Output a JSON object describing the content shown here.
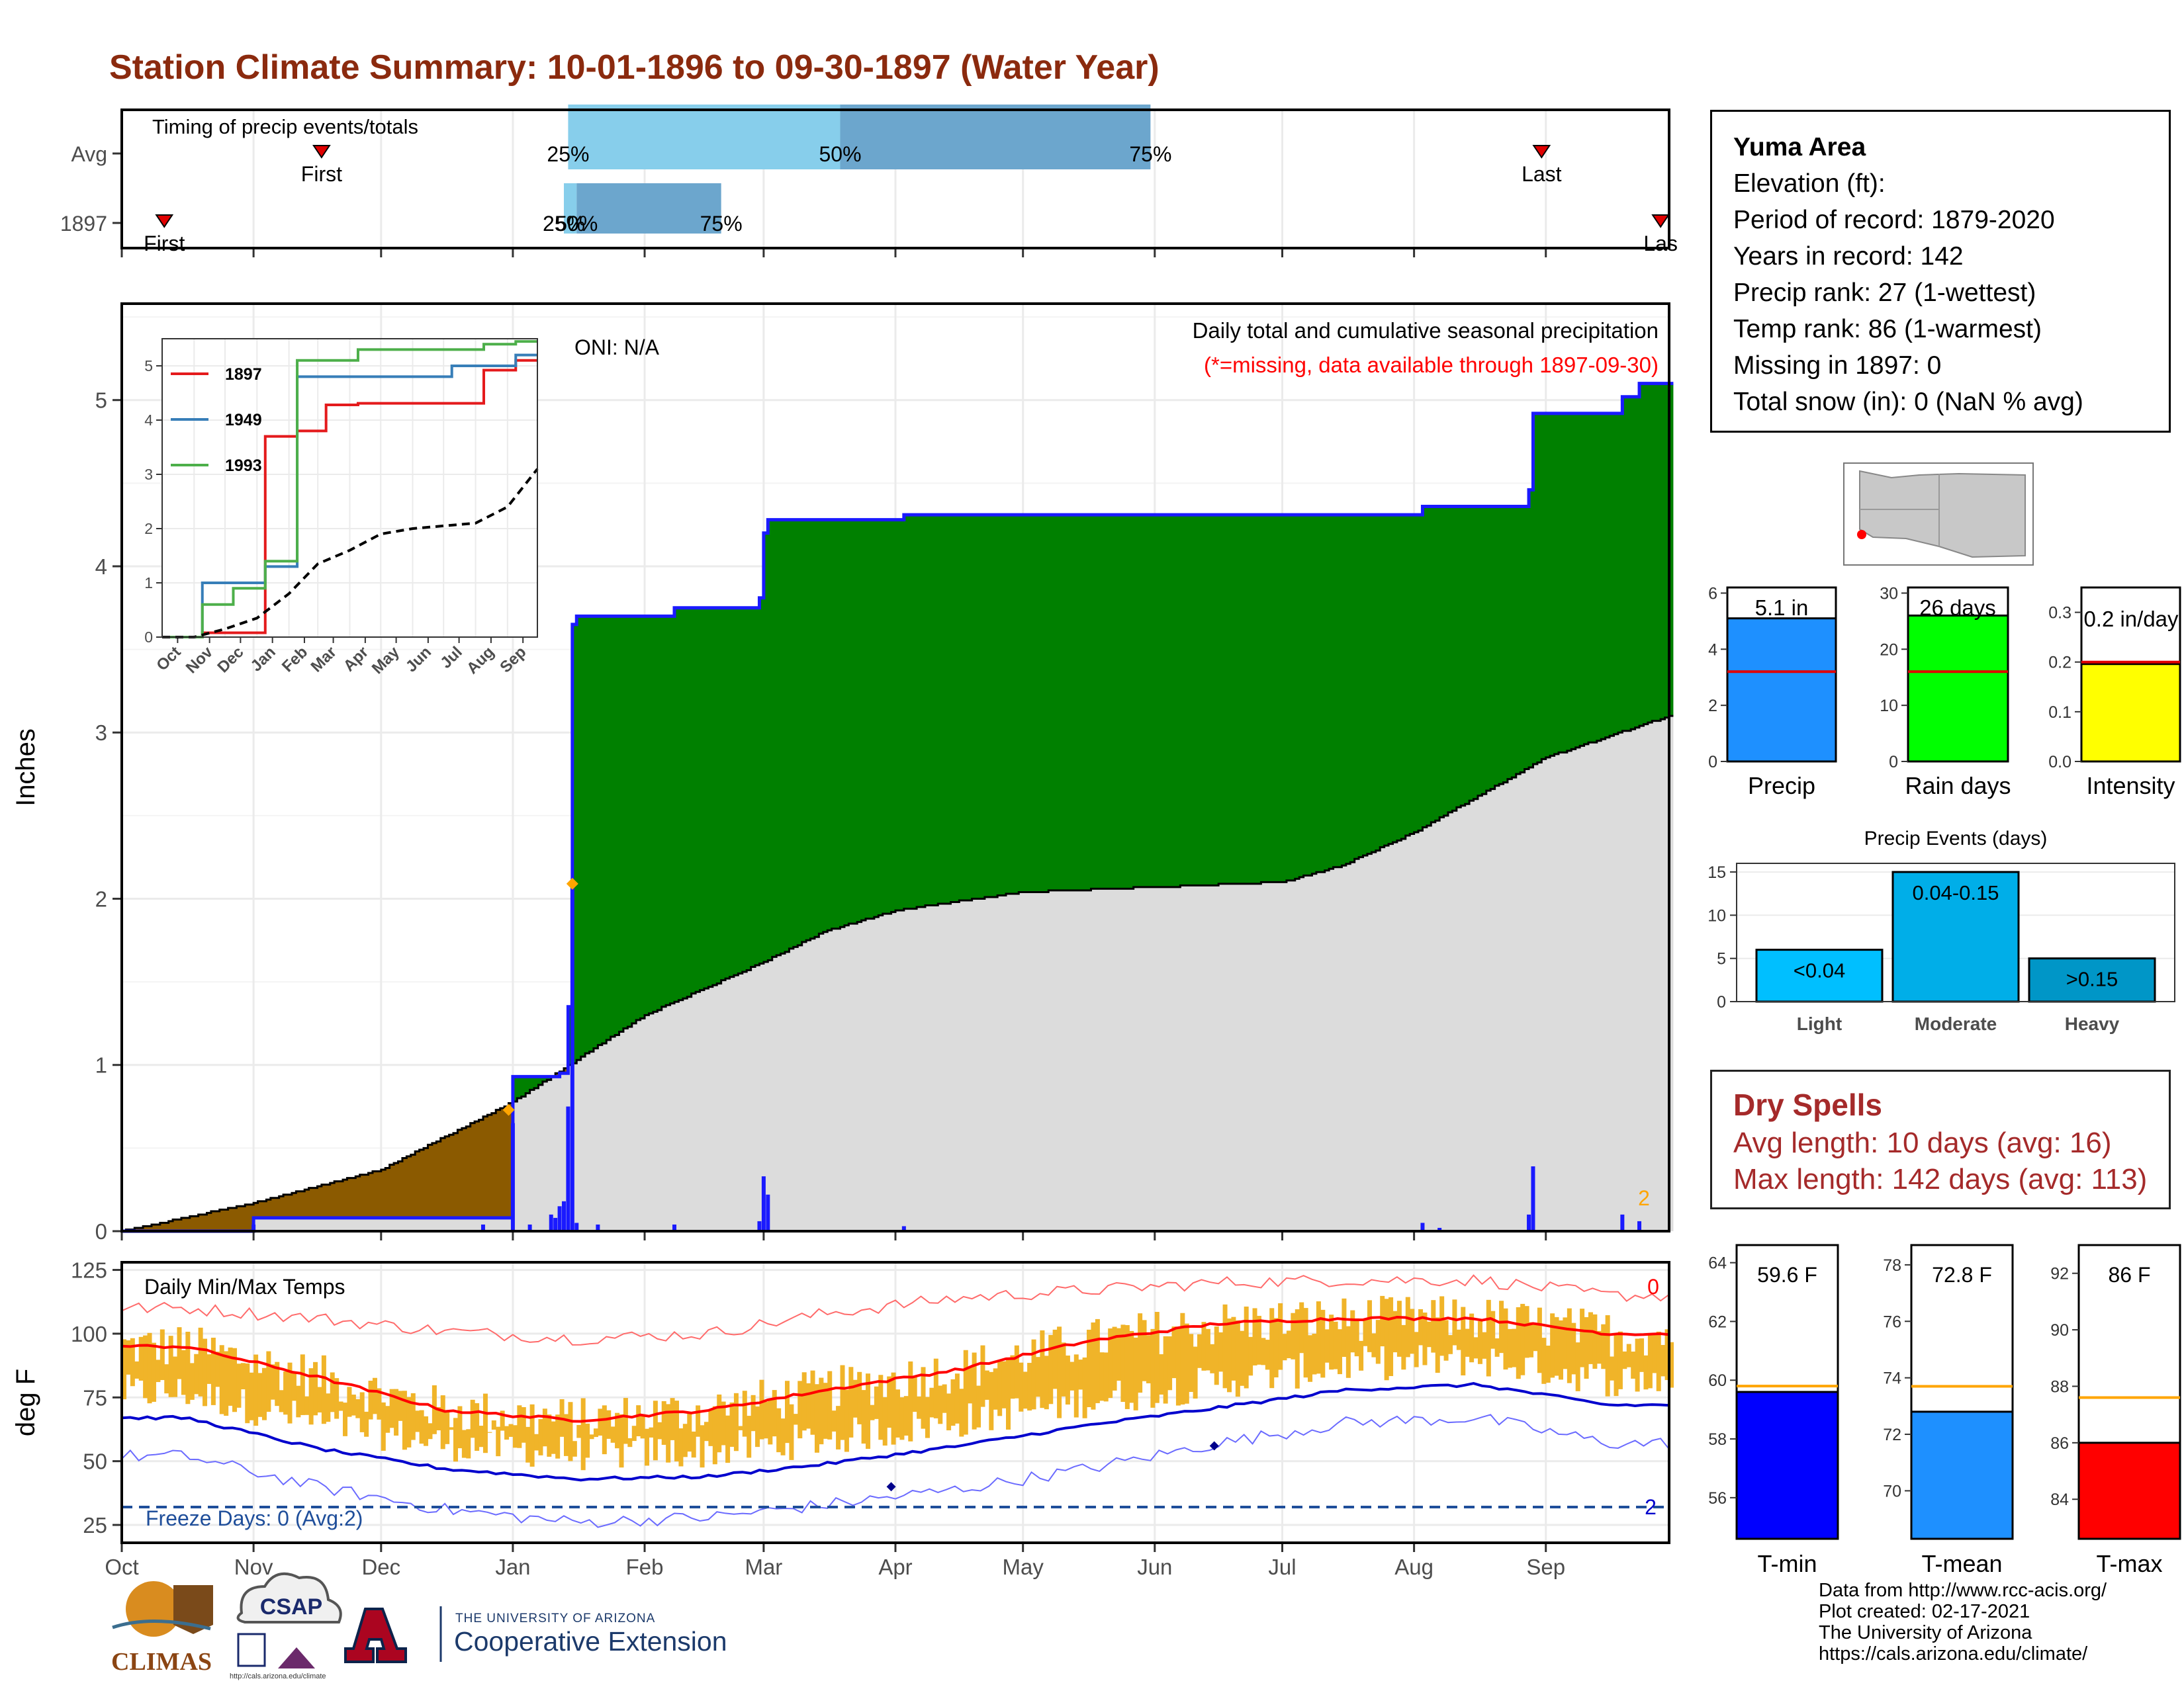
{
  "title": "Station Climate Summary: 10-01-1896 to 09-30-1897 (Water Year)",
  "timing": {
    "heading": "Timing of precip events/totals",
    "rows": [
      {
        "label": "Avg",
        "first_label": "First",
        "last_label": "Last",
        "first_date": "1896-11-17",
        "last_date": "1897-08-31",
        "p25_label": "25%",
        "p50_label": "50%",
        "p75_label": "75%",
        "p25_date": "1897-01-14",
        "p50_date": "1897-03-19",
        "p75_date": "1897-05-31"
      },
      {
        "label": "1897",
        "first_label": "First",
        "last_label": "Las",
        "first_date": "1896-10-11",
        "last_date": "1897-09-28",
        "p25_label": "25%",
        "p50_label": "50%",
        "p75_label": "75%",
        "p25_date": "1897-01-13",
        "p50_date": "1897-01-16",
        "p75_date": "1897-02-19"
      }
    ]
  },
  "main_plot": {
    "ylabel": "Inches",
    "oni": "ONI: N/A",
    "subtitle": "Daily total and cumulative seasonal precipitation",
    "missing_note": "(*=missing, data available through 1897-09-30)",
    "corner_number": "2",
    "y_ticks": [
      "0",
      "1",
      "2",
      "3",
      "4",
      "5"
    ],
    "colors": {
      "above": "#008000",
      "below": "#8b5a00",
      "normal": "#dcdcdc",
      "cum_line": "#1a1aff",
      "bars": "#1a1aff",
      "marker": "#ffa500"
    }
  },
  "inset": {
    "series": [
      {
        "name": "1897",
        "color": "#e41a1c"
      },
      {
        "name": "1949",
        "color": "#377eb8"
      },
      {
        "name": "1993",
        "color": "#4daf4a"
      }
    ],
    "x_ticks": [
      "Oct",
      "Nov",
      "Dec",
      "Jan",
      "Feb",
      "Mar",
      "Apr",
      "May",
      "Jun",
      "Jul",
      "Aug",
      "Sep"
    ],
    "y_ticks": [
      "0",
      "1",
      "2",
      "3",
      "4",
      "5"
    ]
  },
  "temp_plot": {
    "heading": "Daily Min/Max Temps",
    "ylabel": "deg F",
    "y_ticks": [
      "25",
      "50",
      "75",
      "100",
      "125"
    ],
    "x_ticks": [
      "Oct",
      "Nov",
      "Dec",
      "Jan",
      "Feb",
      "Mar",
      "Apr",
      "May",
      "Jun",
      "Jul",
      "Aug",
      "Sep"
    ],
    "freeze_label": "Freeze Days: 0 (Avg:2)",
    "corner_top": "0",
    "corner_bottom": "2",
    "colors": {
      "range": "#f0b429",
      "max_norm": "#ff0000",
      "min_norm": "#0000cd",
      "freeze": "#1f4e9a"
    }
  },
  "station": {
    "name": "Yuma Area",
    "lines": [
      "Elevation (ft):",
      "Period of record: 1879-2020",
      "Years in record: 142",
      "Precip rank: 27 (1-wettest)",
      "Temp rank: 86 (1-warmest)",
      "Missing in 1897: 0",
      "Total snow (in): 0 (NaN % avg)"
    ]
  },
  "summary_bars": [
    {
      "label": "Precip",
      "value_label": "5.1 in",
      "value": 5.1,
      "avg": 3.2,
      "y_ticks": [
        "0",
        "2",
        "4",
        "6"
      ],
      "ymax": 6.2,
      "color": "#1e90ff"
    },
    {
      "label": "Rain days",
      "value_label": "26 days",
      "value": 26,
      "avg": 16,
      "y_ticks": [
        "0",
        "10",
        "20",
        "30"
      ],
      "ymax": 31,
      "color": "#00ff00"
    },
    {
      "label": "Intensity",
      "value_label": "0.2 in/day",
      "value": 0.196,
      "avg": 0.2,
      "y_ticks": [
        "0.0",
        "0.1",
        "0.2",
        "0.3"
      ],
      "ymax": 0.35,
      "color": "#ffff00"
    }
  ],
  "precip_events": {
    "title": "Precip Events (days)",
    "y_ticks": [
      "0",
      "5",
      "10",
      "15"
    ],
    "categories": [
      "Light",
      "Moderate",
      "Heavy"
    ],
    "bins": [
      "<0.04",
      "0.04-0.15",
      ">0.15"
    ],
    "values": [
      6,
      15,
      5
    ],
    "colors": [
      "#00bfff",
      "#00aee8",
      "#0096c7"
    ]
  },
  "dry_spells": {
    "title": "Dry Spells",
    "avg_line": "Avg length: 10 days (avg: 16)",
    "max_line": "Max length: 142 days (avg: 113)"
  },
  "temp_summary": [
    {
      "label": "T-min",
      "value_label": "59.6 F",
      "value": 59.6,
      "avg": 59.8,
      "y_ticks": [
        "56",
        "58",
        "60",
        "62",
        "64"
      ],
      "ymin": 54.6,
      "ymax": 64.6,
      "color": "#0000ff"
    },
    {
      "label": "T-mean",
      "value_label": "72.8 F",
      "value": 72.8,
      "avg": 73.7,
      "y_ticks": [
        "70",
        "72",
        "74",
        "76",
        "78"
      ],
      "ymin": 68.3,
      "ymax": 78.7,
      "color": "#1e90ff"
    },
    {
      "label": "T-max",
      "value_label": "86 F",
      "value": 86.0,
      "avg": 87.6,
      "y_ticks": [
        "84",
        "86",
        "88",
        "90",
        "92"
      ],
      "ymin": 82.6,
      "ymax": 93.0,
      "color": "#ff0000"
    }
  ],
  "logos": {
    "climas": "CLIMAS",
    "csap": "CSAP",
    "csap_url": "http://cals.arizona.edu/climate",
    "ua_letter": "A",
    "ua_small": "THE UNIVERSITY OF ARIZONA",
    "ua_big": "Cooperative Extension"
  },
  "credits": [
    "Data from http://www.rcc-acis.org/",
    "Plot created: 02-17-2021",
    "The University of Arizona",
    "https://cals.arizona.edu/climate/"
  ],
  "chart_data": [
    {
      "type": "bar",
      "title": "Timing of precip events/totals",
      "categories": [
        "Avg",
        "1897"
      ],
      "series": [
        {
          "name": "First",
          "values": [
            "1896-11-17",
            "1896-10-11"
          ]
        },
        {
          "name": "25%",
          "values": [
            "1897-01-14",
            "1897-01-13"
          ]
        },
        {
          "name": "50%",
          "values": [
            "1897-03-19",
            "1897-01-16"
          ]
        },
        {
          "name": "75%",
          "values": [
            "1897-05-31",
            "1897-02-19"
          ]
        },
        {
          "name": "Last",
          "values": [
            "1897-08-31",
            "1897-09-28"
          ]
        }
      ]
    },
    {
      "type": "area",
      "title": "Daily total and cumulative seasonal precipitation",
      "xlabel": "",
      "ylabel": "Inches",
      "ylim": [
        0,
        5.6
      ],
      "daily_precip": [
        {
          "date": "1896-11-01",
          "in": 0.04
        },
        {
          "date": "1896-12-25",
          "in": 0.04
        },
        {
          "date": "1897-01-05",
          "in": 0.04
        },
        {
          "date": "1897-01-21",
          "in": 0.04
        },
        {
          "date": "1897-01-01",
          "in": 0.65
        },
        {
          "date": "1897-01-10",
          "in": 0.1
        },
        {
          "date": "1897-01-11",
          "in": 0.08
        },
        {
          "date": "1897-01-12",
          "in": 0.15
        },
        {
          "date": "1897-01-13",
          "in": 0.18
        },
        {
          "date": "1897-01-14",
          "in": 0.75
        },
        {
          "date": "1897-01-15",
          "in": 2.1
        },
        {
          "date": "1897-01-16",
          "in": 0.05
        },
        {
          "date": "1897-02-08",
          "in": 0.04
        },
        {
          "date": "1897-02-28",
          "in": 0.06
        },
        {
          "date": "1897-03-01",
          "in": 0.33
        },
        {
          "date": "1897-03-02",
          "in": 0.22
        },
        {
          "date": "1897-04-03",
          "in": 0.03
        },
        {
          "date": "1897-08-03",
          "in": 0.05
        },
        {
          "date": "1897-08-07",
          "in": 0.02
        },
        {
          "date": "1897-08-28",
          "in": 0.1
        },
        {
          "date": "1897-08-29",
          "in": 0.39
        },
        {
          "date": "1897-09-19",
          "in": 0.1
        },
        {
          "date": "1897-09-23",
          "in": 0.06
        }
      ],
      "cumulative_1897": [
        {
          "date": "1896-10-01",
          "in": 0.0
        },
        {
          "date": "1896-11-01",
          "in": 0.08
        },
        {
          "date": "1896-12-25",
          "in": 0.08
        },
        {
          "date": "1896-12-31",
          "in": 0.08
        },
        {
          "date": "1897-01-01",
          "in": 0.93
        },
        {
          "date": "1897-01-12",
          "in": 0.95
        },
        {
          "date": "1897-01-14",
          "in": 1.35
        },
        {
          "date": "1897-01-15",
          "in": 3.65
        },
        {
          "date": "1897-01-16",
          "in": 3.7
        },
        {
          "date": "1897-02-08",
          "in": 3.75
        },
        {
          "date": "1897-02-28",
          "in": 3.81
        },
        {
          "date": "1897-03-01",
          "in": 4.2
        },
        {
          "date": "1897-03-02",
          "in": 4.28
        },
        {
          "date": "1897-04-03",
          "in": 4.31
        },
        {
          "date": "1897-08-03",
          "in": 4.36
        },
        {
          "date": "1897-08-28",
          "in": 4.46
        },
        {
          "date": "1897-08-29",
          "in": 4.92
        },
        {
          "date": "1897-09-19",
          "in": 5.02
        },
        {
          "date": "1897-09-23",
          "in": 5.1
        },
        {
          "date": "1897-09-30",
          "in": 5.1
        }
      ],
      "cumulative_avg": [
        {
          "date": "1896-10-01",
          "in": 0.0
        },
        {
          "date": "1896-11-01",
          "in": 0.17
        },
        {
          "date": "1896-12-01",
          "in": 0.37
        },
        {
          "date": "1897-01-01",
          "in": 0.78
        },
        {
          "date": "1897-02-01",
          "in": 1.3
        },
        {
          "date": "1897-03-01",
          "in": 1.62
        },
        {
          "date": "1897-03-15",
          "in": 1.8
        },
        {
          "date": "1897-04-01",
          "in": 1.93
        },
        {
          "date": "1897-05-01",
          "in": 2.04
        },
        {
          "date": "1897-06-01",
          "in": 2.07
        },
        {
          "date": "1897-07-01",
          "in": 2.1
        },
        {
          "date": "1897-07-15",
          "in": 2.2
        },
        {
          "date": "1897-08-01",
          "in": 2.4
        },
        {
          "date": "1897-09-01",
          "in": 2.85
        },
        {
          "date": "1897-09-30",
          "in": 3.1
        }
      ]
    },
    {
      "type": "line",
      "title": "",
      "x": [
        "Oct",
        "Nov",
        "Dec",
        "Jan",
        "Feb",
        "Mar",
        "Apr",
        "May",
        "Jun",
        "Jul",
        "Aug",
        "Sep"
      ],
      "ylim": [
        0,
        5.3
      ],
      "series": [
        {
          "name": "1897",
          "values": [
            0.0,
            0.08,
            0.08,
            3.7,
            3.8,
            4.28,
            4.31,
            4.31,
            4.31,
            4.31,
            4.92,
            5.1
          ]
        },
        {
          "name": "1949",
          "values": [
            0.0,
            1.0,
            1.0,
            1.3,
            4.8,
            4.8,
            4.8,
            4.8,
            4.8,
            5.0,
            5.0,
            5.2
          ]
        },
        {
          "name": "1993",
          "values": [
            0.0,
            0.6,
            0.9,
            1.4,
            5.1,
            5.1,
            5.3,
            5.3,
            5.3,
            5.3,
            5.4,
            5.45
          ]
        },
        {
          "name": "",
          "values": [
            0.0,
            0.15,
            0.35,
            0.8,
            1.35,
            1.6,
            1.9,
            2.0,
            2.05,
            2.1,
            2.4,
            3.1
          ]
        }
      ]
    },
    {
      "type": "line",
      "title": "Daily Min/Max Temps",
      "ylabel": "deg F",
      "ylim": [
        18,
        128
      ],
      "x": [
        "Oct",
        "Nov",
        "Dec",
        "Jan",
        "Feb",
        "Mar",
        "Apr",
        "May",
        "Jun",
        "Jul",
        "Aug",
        "Sep"
      ],
      "series": [
        {
          "name": "",
          "values": [
            95,
            83,
            70,
            66,
            70,
            78,
            86,
            97,
            104,
            106,
            106,
            100
          ]
        },
        {
          "name": "",
          "values": [
            67,
            55,
            47,
            43,
            44,
            49,
            56,
            64,
            71,
            78,
            80,
            72
          ]
        },
        {
          "name": "",
          "values": [
            110,
            106,
            101,
            98,
            100,
            108,
            114,
            117,
            120,
            121,
            121,
            115
          ]
        },
        {
          "name": "",
          "values": [
            52,
            40,
            31,
            26,
            28,
            33,
            39,
            47,
            57,
            65,
            67,
            57
          ]
        }
      ],
      "freeze_threshold": 32
    },
    {
      "type": "bar",
      "title": "",
      "categories": [
        "Precip"
      ],
      "values": [
        5.1
      ],
      "ylim": [
        0,
        6.2
      ]
    },
    {
      "type": "bar",
      "title": "",
      "categories": [
        "Rain days"
      ],
      "values": [
        26
      ],
      "ylim": [
        0,
        31
      ]
    },
    {
      "type": "bar",
      "title": "",
      "categories": [
        "Intensity"
      ],
      "values": [
        0.196
      ],
      "ylim": [
        0,
        0.35
      ]
    },
    {
      "type": "bar",
      "title": "Precip Events (days)",
      "categories": [
        "Light",
        "Moderate",
        "Heavy"
      ],
      "values": [
        6,
        15,
        5
      ],
      "ylim": [
        0,
        16
      ]
    },
    {
      "type": "bar",
      "title": "",
      "categories": [
        "T-min"
      ],
      "values": [
        59.6
      ],
      "ylim": [
        54.6,
        64.6
      ]
    },
    {
      "type": "bar",
      "title": "",
      "categories": [
        "T-mean"
      ],
      "values": [
        72.8
      ],
      "ylim": [
        68.3,
        78.7
      ]
    },
    {
      "type": "bar",
      "title": "",
      "categories": [
        "T-max"
      ],
      "values": [
        86.0
      ],
      "ylim": [
        82.6,
        93.0
      ]
    }
  ]
}
